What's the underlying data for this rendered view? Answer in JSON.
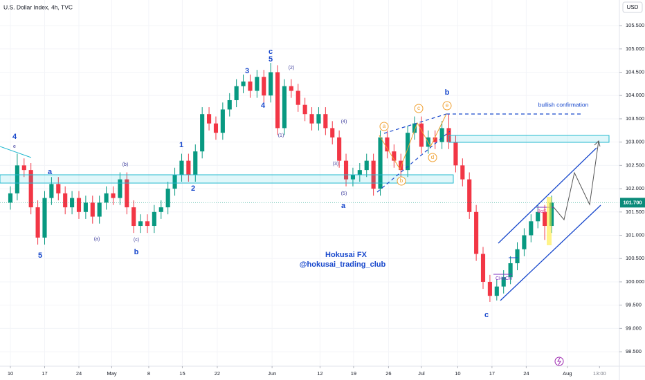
{
  "chart_data": {
    "type": "candlestick",
    "title": "U.S. Dollar Index, 4h, TVC",
    "currency": "USD",
    "up_color": "#089981",
    "down_color": "#f23645",
    "grid": true,
    "xlim": [
      -1.515,
      88.9
    ],
    "xticks": [
      {
        "value": 0,
        "label": "10"
      },
      {
        "value": 5,
        "label": "17"
      },
      {
        "value": 10,
        "label": "24"
      },
      {
        "value": 14.8,
        "label": "May"
      },
      {
        "value": 20.2,
        "label": "8"
      },
      {
        "value": 25.1,
        "label": "15"
      },
      {
        "value": 30.2,
        "label": "22"
      },
      {
        "value": 38.2,
        "label": "Jun"
      },
      {
        "value": 45.2,
        "label": "12"
      },
      {
        "value": 50.1,
        "label": "19"
      },
      {
        "value": 55.2,
        "label": "26"
      },
      {
        "value": 60,
        "label": "Jul"
      },
      {
        "value": 65.3,
        "label": "10"
      },
      {
        "value": 70.3,
        "label": "17"
      },
      {
        "value": 75.3,
        "label": "24"
      },
      {
        "value": 81.3,
        "label": "Aug"
      },
      {
        "value": 86,
        "label": "13:00"
      }
    ],
    "ylim": [
      98.19,
      106.05
    ],
    "yticks": [
      {
        "value": 98.5,
        "label": "98.500"
      },
      {
        "value": 99,
        "label": "99.000"
      },
      {
        "value": 99.5,
        "label": "99.500"
      },
      {
        "value": 100,
        "label": "100.000"
      },
      {
        "value": 100.5,
        "label": "100.500"
      },
      {
        "value": 101,
        "label": "101.000"
      },
      {
        "value": 101.5,
        "label": "101.500"
      },
      {
        "value": 102,
        "label": "102.000"
      },
      {
        "value": 102.5,
        "label": "102.500"
      },
      {
        "value": 103,
        "label": "103.000"
      },
      {
        "value": 103.5,
        "label": "103.500"
      },
      {
        "value": 104,
        "label": "104.000"
      },
      {
        "value": 104.5,
        "label": "104.500"
      },
      {
        "value": 105,
        "label": "105.000"
      },
      {
        "value": 105.5,
        "label": "105.500"
      }
    ],
    "last_price": 101.7,
    "last_price_label": "101.700",
    "open": [
      101.7,
      101.9,
      102.5,
      102.4,
      101.6,
      100.95,
      101.8,
      102.1,
      101.9,
      101.6,
      101.8,
      101.5,
      101.7,
      101.4,
      101.7,
      101.9,
      101.8,
      102.2,
      101.6,
      101.2,
      101.3,
      101.2,
      101.5,
      101.6,
      102.0,
      102.3,
      102.6,
      102.3,
      102.8,
      103.6,
      103.4,
      103.2,
      103.7,
      103.9,
      104.2,
      104.3,
      104.1,
      104.4,
      104.0,
      104.5,
      103.3,
      104.2,
      104.1,
      103.8,
      103.6,
      103.4,
      103.6,
      103.3,
      103.1,
      102.6,
      102.2,
      102.3,
      102.4,
      102.6,
      102.0,
      103.1,
      102.8,
      102.6,
      102.4,
      103.2,
      103.4,
      102.9,
      103.1,
      103.0,
      103.3,
      103.0,
      102.5,
      102.2,
      101.5,
      100.6,
      100.0,
      99.7,
      99.9,
      100.1,
      100.4,
      100.7,
      101.0,
      101.3,
      101.5,
      101.2
    ],
    "high": [
      102.05,
      102.75,
      102.65,
      102.55,
      101.75,
      101.95,
      102.25,
      102.25,
      102.05,
      101.95,
      101.95,
      101.85,
      101.85,
      101.85,
      102.05,
      102.05,
      102.35,
      102.35,
      101.75,
      101.45,
      101.45,
      101.65,
      101.75,
      102.15,
      102.45,
      102.75,
      102.75,
      102.95,
      103.75,
      103.75,
      103.55,
      103.85,
      104.05,
      104.35,
      104.45,
      104.45,
      104.55,
      104.55,
      104.7,
      104.65,
      104.35,
      104.35,
      104.25,
      103.95,
      103.75,
      103.75,
      103.75,
      103.45,
      103.25,
      102.75,
      102.45,
      102.55,
      102.75,
      102.75,
      103.25,
      103.25,
      102.95,
      102.75,
      103.35,
      103.55,
      103.55,
      103.25,
      103.25,
      103.45,
      103.6,
      103.15,
      102.65,
      102.35,
      101.65,
      100.75,
      100.15,
      100.05,
      100.25,
      100.55,
      100.85,
      101.15,
      101.45,
      101.65,
      101.65,
      101.85
    ],
    "low": [
      101.55,
      101.75,
      102.25,
      101.45,
      100.8,
      100.8,
      101.65,
      101.75,
      101.45,
      101.45,
      101.35,
      101.35,
      101.25,
      101.25,
      101.55,
      101.65,
      101.65,
      101.45,
      101.05,
      101.05,
      101.05,
      101.05,
      101.35,
      101.45,
      101.85,
      102.15,
      102.15,
      102.15,
      102.65,
      103.25,
      103.05,
      103.05,
      103.55,
      103.75,
      104.05,
      103.95,
      103.95,
      103.85,
      103.85,
      103.15,
      103.15,
      103.95,
      103.65,
      103.45,
      103.25,
      103.25,
      103.15,
      102.95,
      102.45,
      102.05,
      102.05,
      102.15,
      102.25,
      101.85,
      101.85,
      102.65,
      102.45,
      102.25,
      102.25,
      103.05,
      102.75,
      102.75,
      102.85,
      102.85,
      102.85,
      102.35,
      102.05,
      101.35,
      100.45,
      99.85,
      99.57,
      99.6,
      99.75,
      99.95,
      100.25,
      100.55,
      100.85,
      101.15,
      100.9,
      101.05
    ],
    "close": [
      101.9,
      102.5,
      102.4,
      101.6,
      100.95,
      101.8,
      102.1,
      101.9,
      101.6,
      101.8,
      101.5,
      101.7,
      101.4,
      101.7,
      101.9,
      101.8,
      102.2,
      101.6,
      101.2,
      101.3,
      101.2,
      101.5,
      101.6,
      102.0,
      102.3,
      102.6,
      102.3,
      102.8,
      103.6,
      103.4,
      103.2,
      103.7,
      103.9,
      104.2,
      104.3,
      104.1,
      104.4,
      104.0,
      104.5,
      103.3,
      104.2,
      104.1,
      103.8,
      103.6,
      103.4,
      103.6,
      103.3,
      103.1,
      102.6,
      102.2,
      102.3,
      102.4,
      102.6,
      102.0,
      103.1,
      102.8,
      102.6,
      102.4,
      103.2,
      103.4,
      102.9,
      103.1,
      103.0,
      103.3,
      103.0,
      102.5,
      102.2,
      101.5,
      100.6,
      100.0,
      99.7,
      99.9,
      100.1,
      100.4,
      100.7,
      101.0,
      101.3,
      101.5,
      101.2,
      101.7
    ],
    "annotations": [
      "4",
      "e",
      "5",
      "a",
      "(a)",
      "(b)",
      "(c)",
      "b",
      "1",
      "2",
      "3",
      "4",
      "c",
      "5",
      "(1)",
      "(2)",
      "(4)",
      "(3)",
      "(5)",
      "a",
      "b",
      "a",
      "b",
      "c",
      "d",
      "e",
      "c",
      "bullish confirmation",
      "Hokusai FX",
      "@hokusai_trading_club",
      "CHoCH",
      "BoS"
    ]
  }
}
